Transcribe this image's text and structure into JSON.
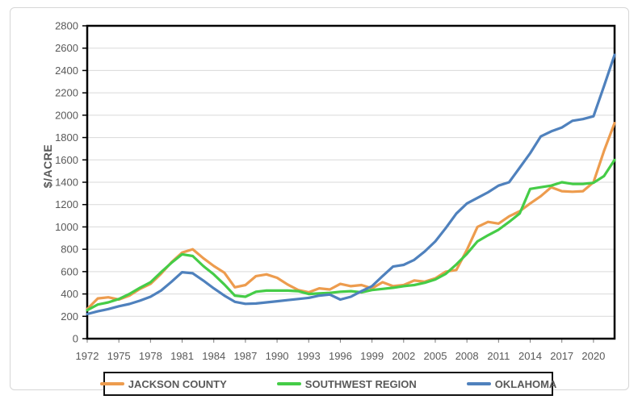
{
  "figure": {
    "y_axis_title": "$/ACRE"
  },
  "legend": {
    "items": [
      {
        "label": "JACKSON COUNTY",
        "color": "#ED9C4E"
      },
      {
        "label": "SOUTHWEST REGION",
        "color": "#45CC47"
      },
      {
        "label": "OKLAHOMA",
        "color": "#4F81BD"
      }
    ]
  },
  "colors": {
    "grid": "#D9D9D9",
    "plot_border": "#000000",
    "axis_text": "#595959",
    "figure_border": "#D6D6D6"
  },
  "chart_data": {
    "type": "line",
    "title": "",
    "xlabel": "",
    "ylabel": "$/ACRE",
    "ylim": [
      0,
      2800
    ],
    "ytick_step": 200,
    "grid": "horizontal only",
    "legend_position": "bottom center, boxed",
    "xtick_labels": [
      "1972",
      "1975",
      "1978",
      "1981",
      "1984",
      "1987",
      "1990",
      "1993",
      "1996",
      "1999",
      "2002",
      "2005",
      "2008",
      "2011",
      "2014",
      "2017",
      "2020"
    ],
    "x": [
      1972,
      1973,
      1974,
      1975,
      1976,
      1977,
      1978,
      1979,
      1980,
      1981,
      1982,
      1983,
      1984,
      1985,
      1986,
      1987,
      1988,
      1989,
      1990,
      1991,
      1992,
      1993,
      1994,
      1995,
      1996,
      1997,
      1998,
      1999,
      2000,
      2001,
      2002,
      2003,
      2004,
      2005,
      2006,
      2007,
      2008,
      2009,
      2010,
      2011,
      2012,
      2013,
      2014,
      2015,
      2016,
      2017,
      2018,
      2019,
      2020,
      2021,
      2022
    ],
    "series": [
      {
        "name": "JACKSON COUNTY",
        "color": "#ED9C4E",
        "values": [
          265,
          360,
          370,
          350,
          385,
          445,
          490,
          580,
          685,
          770,
          800,
          720,
          650,
          590,
          460,
          480,
          560,
          575,
          545,
          485,
          435,
          415,
          450,
          440,
          490,
          470,
          480,
          450,
          505,
          470,
          480,
          520,
          510,
          540,
          600,
          615,
          795,
          1000,
          1045,
          1030,
          1095,
          1140,
          1210,
          1275,
          1355,
          1320,
          1315,
          1320,
          1400,
          1680,
          1930
        ]
      },
      {
        "name": "SOUTHWEST REGION",
        "color": "#45CC47",
        "values": [
          255,
          305,
          325,
          355,
          400,
          455,
          505,
          595,
          680,
          755,
          740,
          650,
          575,
          485,
          385,
          375,
          420,
          430,
          430,
          430,
          425,
          400,
          405,
          410,
          420,
          425,
          415,
          435,
          445,
          455,
          470,
          480,
          500,
          530,
          580,
          665,
          760,
          870,
          925,
          975,
          1045,
          1120,
          1340,
          1355,
          1370,
          1400,
          1385,
          1385,
          1395,
          1455,
          1600
        ]
      },
      {
        "name": "OKLAHOMA",
        "color": "#4F81BD",
        "values": [
          220,
          245,
          265,
          290,
          310,
          340,
          375,
          430,
          510,
          595,
          585,
          520,
          450,
          385,
          330,
          312,
          315,
          325,
          335,
          345,
          355,
          365,
          385,
          395,
          350,
          375,
          425,
          470,
          560,
          645,
          660,
          705,
          780,
          870,
          990,
          1120,
          1210,
          1260,
          1310,
          1370,
          1400,
          1530,
          1660,
          1810,
          1855,
          1890,
          1950,
          1965,
          1990,
          2260,
          2540
        ]
      }
    ]
  }
}
